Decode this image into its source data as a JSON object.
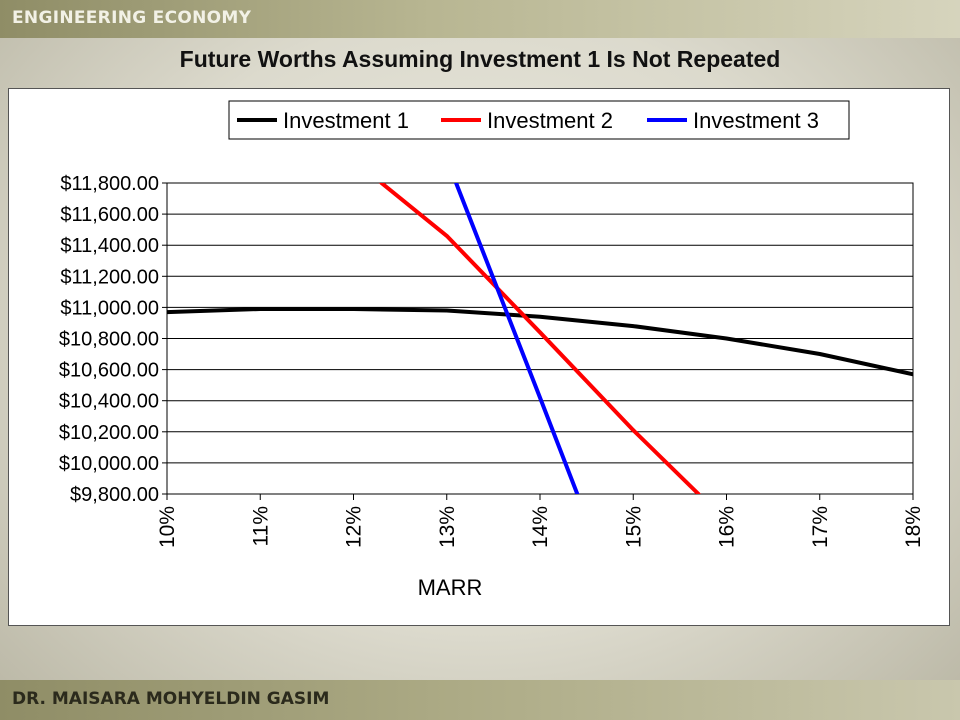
{
  "header": {
    "course_title": "ENGINEERING ECONOMY"
  },
  "slide": {
    "title": "Future Worths Assuming Investment 1 Is Not Repeated"
  },
  "footer": {
    "author": "DR. MAISARA MOHYELDIN GASIM"
  },
  "chart_data": {
    "type": "line",
    "title": "",
    "xlabel": "MARR",
    "ylabel": "",
    "xlim": [
      0.1,
      0.18
    ],
    "ylim": [
      9800,
      11800
    ],
    "x_ticks": [
      0.1,
      0.11,
      0.12,
      0.13,
      0.14,
      0.15,
      0.16,
      0.17,
      0.18
    ],
    "x_tick_labels": [
      "10%",
      "11%",
      "12%",
      "13%",
      "14%",
      "15%",
      "16%",
      "17%",
      "18%"
    ],
    "y_ticks": [
      9800,
      10000,
      10200,
      10400,
      10600,
      10800,
      11000,
      11200,
      11400,
      11600,
      11800
    ],
    "y_tick_labels": [
      "$9,800.00",
      "$10,000.00",
      "$10,200.00",
      "$10,400.00",
      "$10,600.00",
      "$10,800.00",
      "$11,000.00",
      "$11,200.00",
      "$11,400.00",
      "$11,600.00",
      "$11,800.00"
    ],
    "grid": "horizontal",
    "legend_position": "top",
    "series": [
      {
        "name": "Investment 1",
        "color": "#000000",
        "points": [
          [
            0.1,
            10970
          ],
          [
            0.11,
            10990
          ],
          [
            0.12,
            10990
          ],
          [
            0.13,
            10980
          ],
          [
            0.14,
            10940
          ],
          [
            0.15,
            10880
          ],
          [
            0.16,
            10800
          ],
          [
            0.17,
            10700
          ],
          [
            0.18,
            10570
          ]
        ]
      },
      {
        "name": "Investment 2",
        "color": "#ff0000",
        "points": [
          [
            0.123,
            11800
          ],
          [
            0.13,
            11460
          ],
          [
            0.14,
            10840
          ],
          [
            0.15,
            10210
          ],
          [
            0.157,
            9800
          ]
        ]
      },
      {
        "name": "Investment 3",
        "color": "#0000ff",
        "points": [
          [
            0.131,
            11800
          ],
          [
            0.14,
            10420
          ],
          [
            0.144,
            9800
          ]
        ]
      }
    ]
  }
}
